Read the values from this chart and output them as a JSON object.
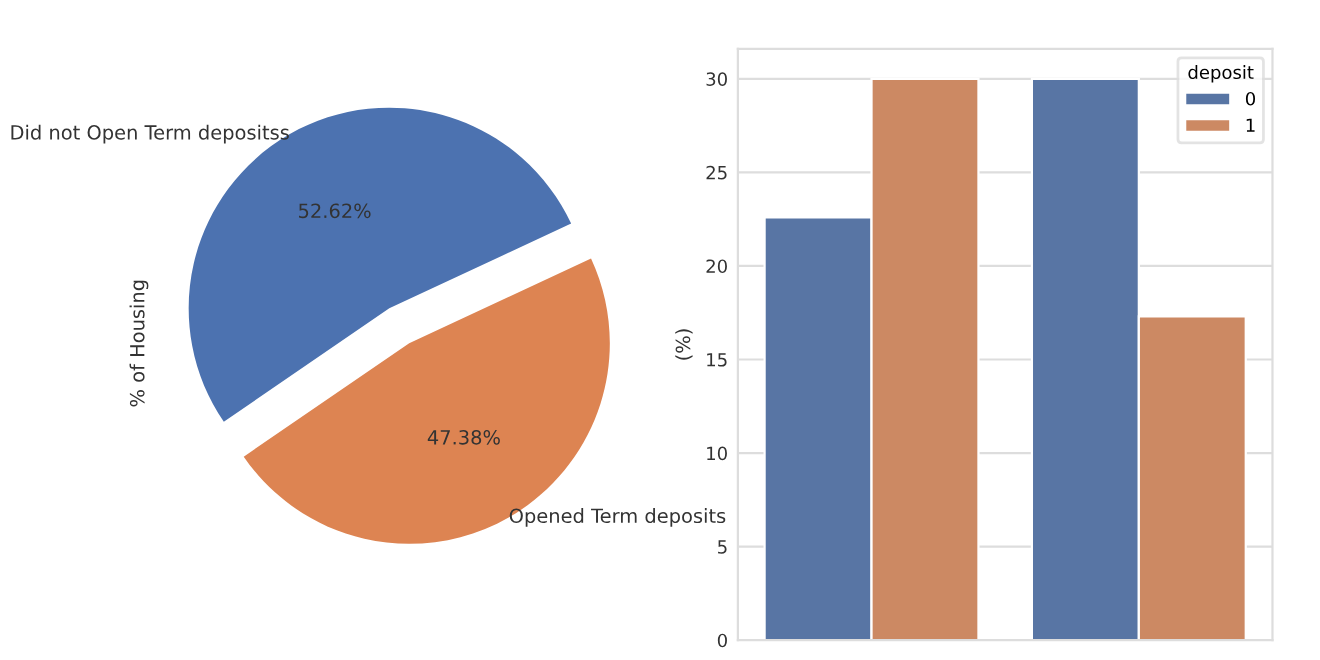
{
  "chart_data": [
    {
      "type": "pie",
      "ylabel": "% of Housing",
      "categories": [
        "Did not Open Term depositss",
        "Opened Term deposits"
      ],
      "values": [
        52.62,
        47.38
      ],
      "value_labels": [
        "52.62%",
        "47.38%"
      ],
      "colors": [
        "#4c72b0",
        "#dd8452"
      ]
    },
    {
      "type": "bar",
      "ylabel": "(%)",
      "legend_title": "deposit",
      "legend": "top right",
      "grid": "y",
      "categories": [
        null,
        null
      ],
      "ylim": [
        0,
        31.6
      ],
      "yticks": [
        0,
        5,
        10,
        15,
        20,
        25,
        30
      ],
      "series": [
        {
          "name": "0",
          "color": "#5875a4",
          "values": [
            22.6,
            30.0
          ]
        },
        {
          "name": "1",
          "color": "#cc8963",
          "values": [
            30.0,
            17.3
          ]
        }
      ]
    }
  ]
}
